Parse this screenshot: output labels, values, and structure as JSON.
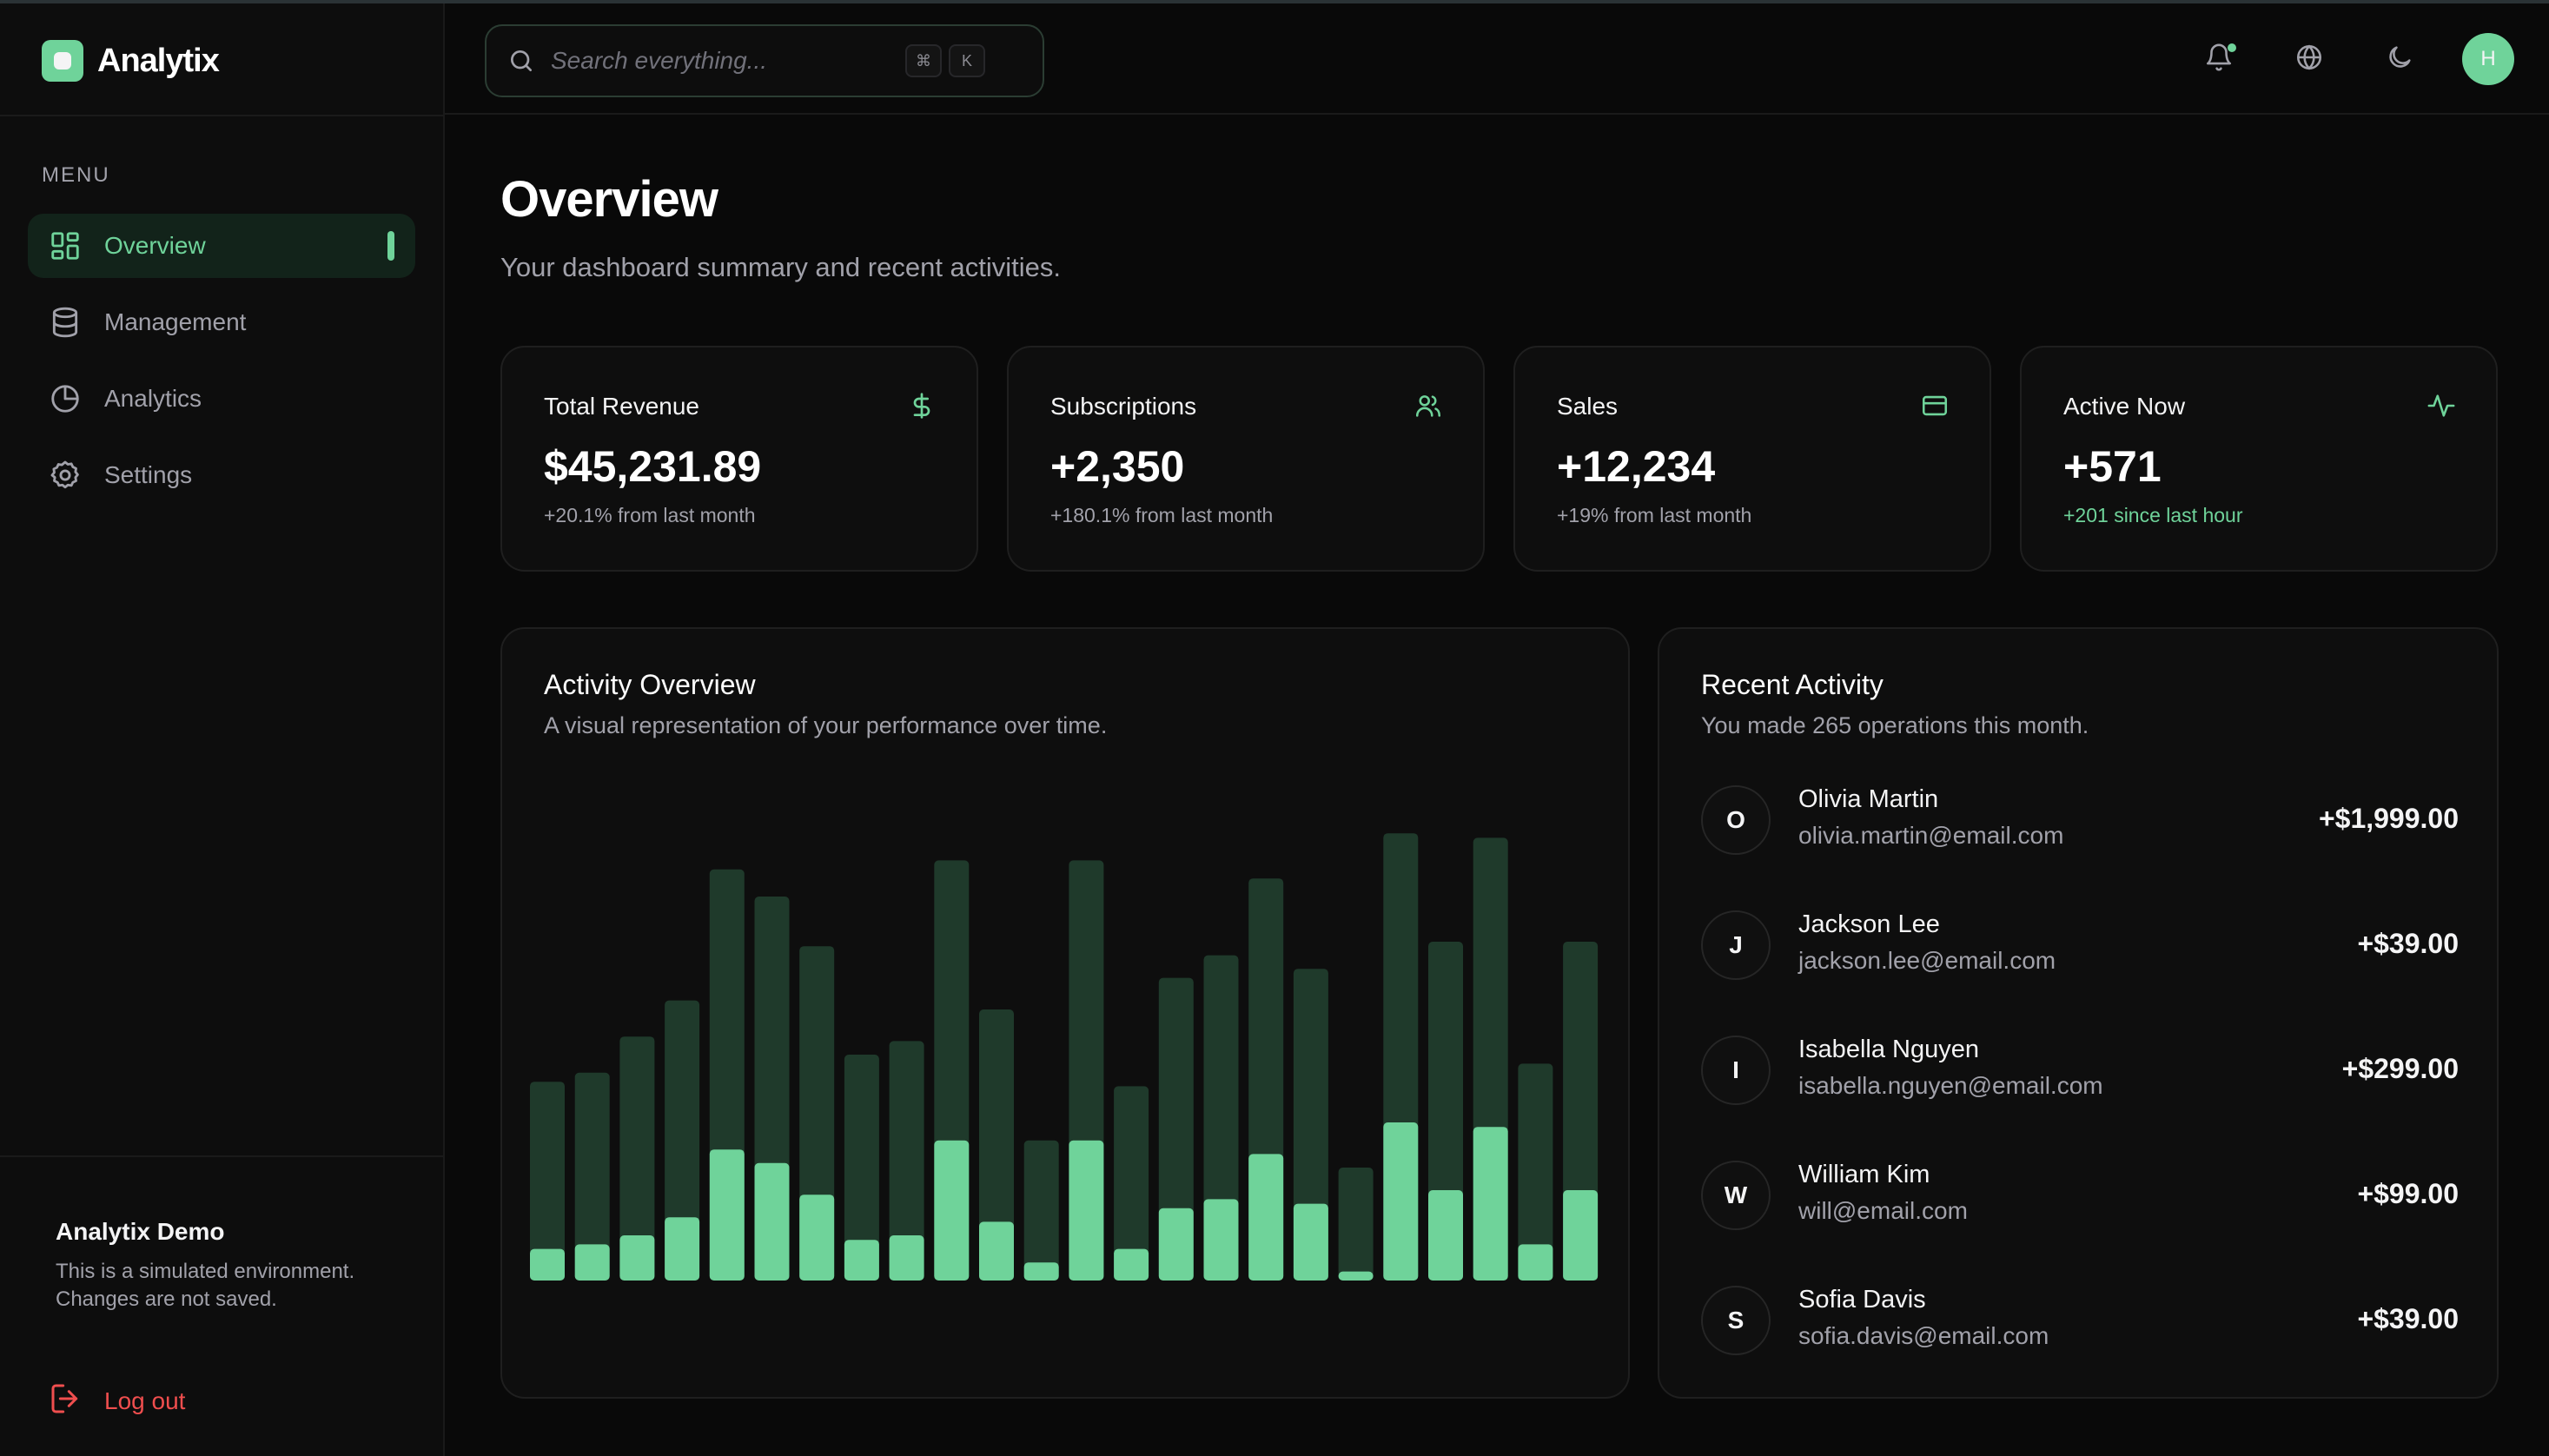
{
  "brand": {
    "name": "Analytix",
    "logo_icon": "square-logo-icon"
  },
  "sidebar": {
    "menu_label": "MENU",
    "items": [
      {
        "label": "Overview",
        "icon": "layout-grid-icon",
        "active": true
      },
      {
        "label": "Management",
        "icon": "database-icon",
        "active": false
      },
      {
        "label": "Analytics",
        "icon": "pie-chart-icon",
        "active": false
      },
      {
        "label": "Settings",
        "icon": "gear-icon",
        "active": false
      }
    ],
    "demo": {
      "title": "Analytix Demo",
      "text": "This is a simulated environment. Changes are not saved."
    },
    "logout_label": "Log out"
  },
  "header": {
    "search": {
      "placeholder": "Search everything...",
      "shortcut_keys": [
        "⌘",
        "K"
      ]
    },
    "icons": [
      "bell-icon",
      "globe-icon",
      "moon-icon"
    ],
    "avatar_initial": "H"
  },
  "page": {
    "title": "Overview",
    "subtitle": "Your dashboard summary and recent activities."
  },
  "stats": [
    {
      "title": "Total Revenue",
      "value": "$45,231.89",
      "note": "+20.1% from last month",
      "icon": "dollar-icon",
      "note_highlight": false
    },
    {
      "title": "Subscriptions",
      "value": "+2,350",
      "note": "+180.1% from last month",
      "icon": "users-icon",
      "note_highlight": false
    },
    {
      "title": "Sales",
      "value": "+12,234",
      "note": "+19% from last month",
      "icon": "credit-card-icon",
      "note_highlight": false
    },
    {
      "title": "Active Now",
      "value": "+571",
      "note": "+201 since last hour",
      "icon": "activity-icon",
      "note_highlight": true
    }
  ],
  "activity_overview": {
    "title": "Activity Overview",
    "subtitle": "A visual representation of your performance over time."
  },
  "chart_data": {
    "type": "bar",
    "title": "Activity Overview",
    "subtitle": "A visual representation of your performance over time.",
    "ylim": [
      0,
      100
    ],
    "grid": false,
    "legend": "none",
    "series": [
      {
        "values": [
          44,
          46,
          54,
          62,
          91,
          85,
          74,
          50,
          53,
          93,
          60,
          31,
          93,
          43,
          67,
          72,
          89,
          69,
          25,
          99,
          75,
          98,
          48,
          75
        ]
      },
      {
        "values": [
          7,
          8,
          10,
          14,
          29,
          26,
          19,
          9,
          10,
          31,
          13,
          4,
          31,
          7,
          16,
          18,
          28,
          17,
          2,
          35,
          20,
          34,
          8,
          20
        ]
      }
    ],
    "colors": {
      "background_bar": "#1f3a2b",
      "foreground_bar": "#6fd39a"
    }
  },
  "recent_activity": {
    "title": "Recent Activity",
    "subtitle": "You made 265 operations this month.",
    "items": [
      {
        "initial": "O",
        "name": "Olivia Martin",
        "email": "olivia.martin@email.com",
        "amount": "+$1,999.00"
      },
      {
        "initial": "J",
        "name": "Jackson Lee",
        "email": "jackson.lee@email.com",
        "amount": "+$39.00"
      },
      {
        "initial": "I",
        "name": "Isabella Nguyen",
        "email": "isabella.nguyen@email.com",
        "amount": "+$299.00"
      },
      {
        "initial": "W",
        "name": "William Kim",
        "email": "will@email.com",
        "amount": "+$99.00"
      },
      {
        "initial": "S",
        "name": "Sofia Davis",
        "email": "sofia.davis@email.com",
        "amount": "+$39.00"
      }
    ]
  },
  "colors": {
    "accent": "#6fd39a",
    "danger": "#ef4e4e",
    "background": "#090909",
    "card": "#0e0e0e"
  }
}
